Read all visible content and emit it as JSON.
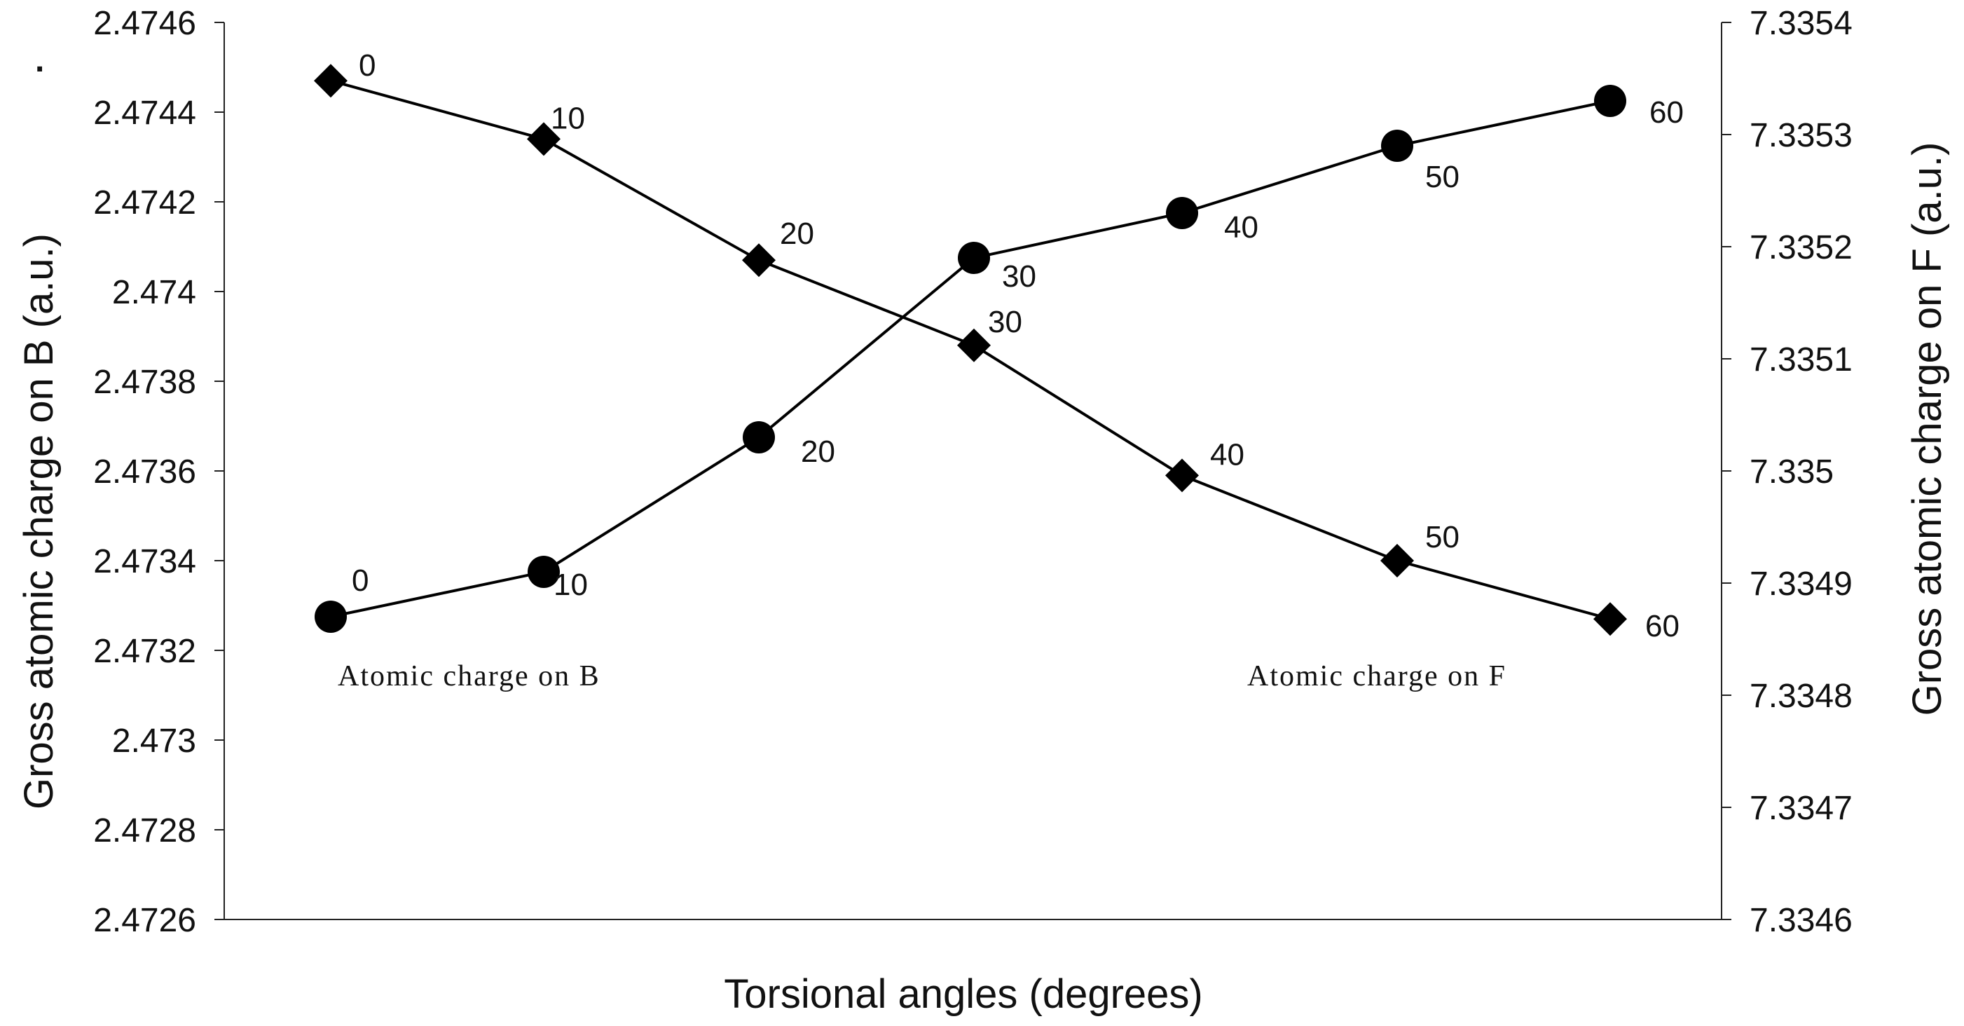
{
  "chart_data": {
    "type": "line",
    "title": "",
    "xlabel": "Torsional angles (degrees)",
    "ylabel_left": "Gross atomic charge on B (a.u.)",
    "ylabel_right": "Gross atomic charge on F (a.u.)",
    "y_left_range": [
      2.4726,
      2.4746
    ],
    "y_right_range": [
      7.3346,
      7.3354
    ],
    "y_left_ticks": [
      "2.4746",
      "2.4744",
      "2.4742",
      "2.474",
      "2.4738",
      "2.4736",
      "2.4734",
      "2.4732",
      "2.473",
      "2.4728",
      "2.4726"
    ],
    "y_left_tick_values": [
      2.4746,
      2.4744,
      2.4742,
      2.474,
      2.4738,
      2.4736,
      2.4734,
      2.4732,
      2.473,
      2.4728,
      2.4726
    ],
    "y_right_ticks": [
      "7.3354",
      "7.3353",
      "7.3352",
      "7.3351",
      "7.335",
      "7.3349",
      "7.3348",
      "7.3347",
      "7.3346"
    ],
    "y_right_tick_values": [
      7.3354,
      7.3353,
      7.3352,
      7.3351,
      7.335,
      7.3349,
      7.3348,
      7.3347,
      7.3346
    ],
    "stray_mark": ".",
    "series": [
      {
        "name": "Atomic charge on B",
        "marker": "diamond",
        "axis": "left",
        "x": [
          0,
          10,
          20,
          30,
          40,
          50,
          60
        ],
        "point_labels": [
          "0",
          "10",
          "20",
          "30",
          "40",
          "50",
          "60"
        ],
        "values": [
          2.47447,
          2.47434,
          2.47407,
          2.47388,
          2.47359,
          2.4734,
          2.47327
        ]
      },
      {
        "name": "Atomic charge on F",
        "marker": "circle",
        "axis": "right",
        "x": [
          0,
          10,
          20,
          30,
          40,
          50,
          60
        ],
        "point_labels": [
          "0",
          "10",
          "20",
          "30",
          "40",
          "50",
          "60"
        ],
        "values": [
          7.33487,
          7.33491,
          7.33503,
          7.33519,
          7.33523,
          7.33529,
          7.33533
        ]
      }
    ]
  }
}
